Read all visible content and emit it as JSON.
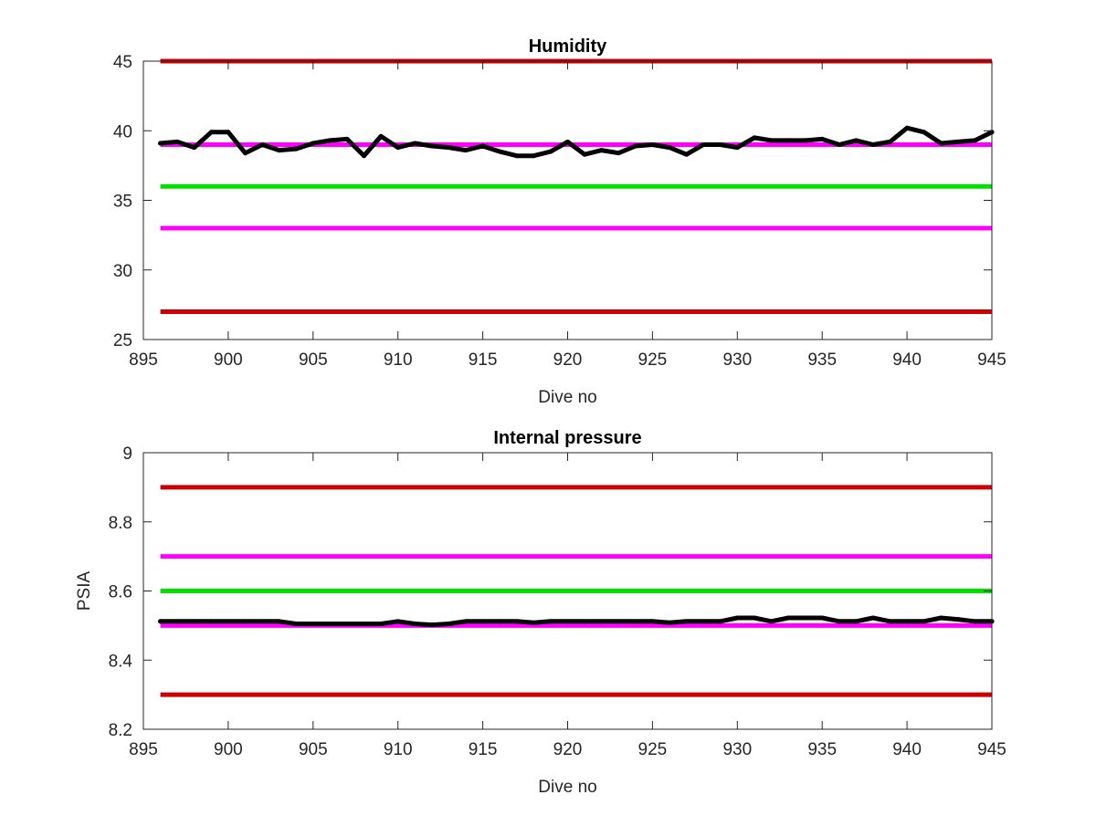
{
  "chart_data": [
    {
      "type": "line",
      "title": "Humidity",
      "xlabel": "Dive no",
      "ylabel": "",
      "xlim": [
        895,
        945
      ],
      "ylim": [
        25,
        45
      ],
      "xticks": [
        "895",
        "900",
        "905",
        "910",
        "915",
        "920",
        "925",
        "930",
        "935",
        "940",
        "945"
      ],
      "yticks": [
        "25",
        "30",
        "35",
        "40",
        "45"
      ],
      "grid": false,
      "reference_lines": [
        {
          "y": 45,
          "color": "#cc0000"
        },
        {
          "y": 39,
          "color": "#ff00ff"
        },
        {
          "y": 36,
          "color": "#00e000"
        },
        {
          "y": 33,
          "color": "#ff00ff"
        },
        {
          "y": 27,
          "color": "#cc0000"
        }
      ],
      "series": [
        {
          "color": "#000000",
          "x": [
            896,
            897,
            898,
            899,
            900,
            901,
            902,
            903,
            904,
            905,
            906,
            907,
            908,
            909,
            910,
            911,
            912,
            913,
            914,
            915,
            916,
            917,
            918,
            919,
            920,
            921,
            922,
            923,
            924,
            925,
            926,
            927,
            928,
            929,
            930,
            931,
            932,
            933,
            934,
            935,
            936,
            937,
            938,
            939,
            940,
            941,
            942,
            943,
            944,
            945
          ],
          "values": [
            39.1,
            39.2,
            38.8,
            39.9,
            39.9,
            38.4,
            39.0,
            38.6,
            38.7,
            39.1,
            39.3,
            39.4,
            38.2,
            39.6,
            38.8,
            39.1,
            38.9,
            38.8,
            38.6,
            38.9,
            38.5,
            38.2,
            38.2,
            38.5,
            39.2,
            38.3,
            38.6,
            38.4,
            38.9,
            39.0,
            38.8,
            38.3,
            39.0,
            39.0,
            38.8,
            39.5,
            39.3,
            39.3,
            39.3,
            39.4,
            39.0,
            39.3,
            39.0,
            39.2,
            40.2,
            39.9,
            39.1,
            39.2,
            39.3,
            39.9
          ]
        }
      ]
    },
    {
      "type": "line",
      "title": "Internal pressure",
      "xlabel": "Dive no",
      "ylabel": "PSIA",
      "xlim": [
        895,
        945
      ],
      "ylim": [
        8.2,
        9
      ],
      "xticks": [
        "895",
        "900",
        "905",
        "910",
        "915",
        "920",
        "925",
        "930",
        "935",
        "940",
        "945"
      ],
      "yticks": [
        "8.2",
        "8.4",
        "8.6",
        "8.8",
        "9"
      ],
      "grid": false,
      "reference_lines": [
        {
          "y": 8.9,
          "color": "#cc0000"
        },
        {
          "y": 8.7,
          "color": "#ff00ff"
        },
        {
          "y": 8.6,
          "color": "#00e000"
        },
        {
          "y": 8.5,
          "color": "#ff00ff"
        },
        {
          "y": 8.3,
          "color": "#cc0000"
        }
      ],
      "series": [
        {
          "color": "#000000",
          "x": [
            896,
            897,
            898,
            899,
            900,
            901,
            902,
            903,
            904,
            905,
            906,
            907,
            908,
            909,
            910,
            911,
            912,
            913,
            914,
            915,
            916,
            917,
            918,
            919,
            920,
            921,
            922,
            923,
            924,
            925,
            926,
            927,
            928,
            929,
            930,
            931,
            932,
            933,
            934,
            935,
            936,
            937,
            938,
            939,
            940,
            941,
            942,
            943,
            944,
            945
          ],
          "values": [
            8.512,
            8.512,
            8.512,
            8.512,
            8.512,
            8.512,
            8.512,
            8.512,
            8.505,
            8.505,
            8.505,
            8.505,
            8.505,
            8.505,
            8.512,
            8.505,
            8.502,
            8.505,
            8.512,
            8.512,
            8.512,
            8.512,
            8.508,
            8.512,
            8.512,
            8.512,
            8.512,
            8.512,
            8.512,
            8.512,
            8.508,
            8.512,
            8.512,
            8.512,
            8.522,
            8.522,
            8.512,
            8.522,
            8.522,
            8.522,
            8.512,
            8.512,
            8.522,
            8.512,
            8.512,
            8.512,
            8.522,
            8.518,
            8.512,
            8.512
          ]
        }
      ]
    }
  ]
}
